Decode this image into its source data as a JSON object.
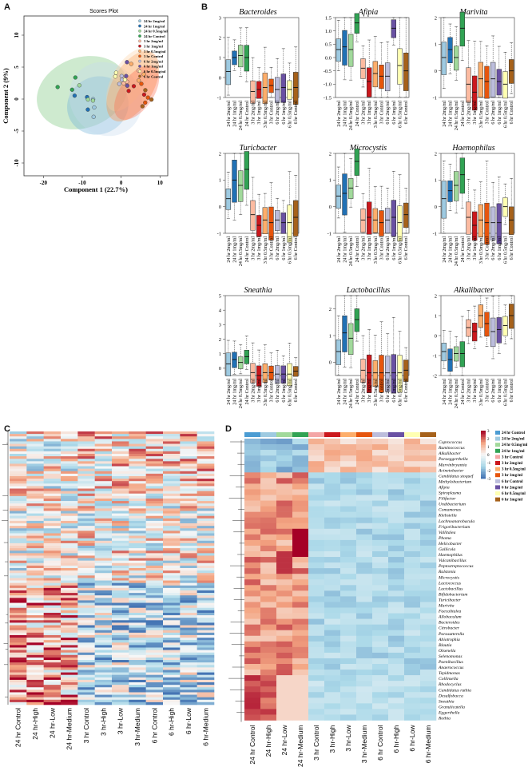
{
  "panels": {
    "a": "A",
    "b": "B",
    "c": "C",
    "d": "D"
  },
  "scores": {
    "title": "Scores Plot",
    "xlabel": "Component 1 (22.7%)",
    "ylabel": "Component 2 (9%)",
    "xticks": [
      "-20",
      "-10",
      "0",
      "10"
    ],
    "yticks": [
      "10",
      "5",
      "0",
      "-5",
      "-10"
    ],
    "legend": [
      {
        "label": "24 hr 2mg/ml",
        "color": "#9ecae1"
      },
      {
        "label": "24 hr 1mg/ml",
        "color": "#2171b5"
      },
      {
        "label": "24 hr 0.5mg/ml",
        "color": "#a1d99b"
      },
      {
        "label": "24 hr Control",
        "color": "#31a354"
      },
      {
        "label": "3 hr 2mg/ml",
        "color": "#fcbba1"
      },
      {
        "label": "3 hr 1mg/ml",
        "color": "#cb181d"
      },
      {
        "label": "3 hr 0.5mg/ml",
        "color": "#fdae6b"
      },
      {
        "label": "3 hr Control",
        "color": "#e6550d"
      },
      {
        "label": "6 hr 2mg/ml",
        "color": "#bcbddc"
      },
      {
        "label": "6 hr 1mg/ml",
        "color": "#6a51a3"
      },
      {
        "label": "6 hr 0.5mg/ml",
        "color": "#ffffb2"
      },
      {
        "label": "6 hr Control",
        "color": "#a6611a"
      }
    ]
  },
  "box_groups": [
    "24 hr 2mg/ml",
    "24 hr 1mg/ml",
    "24 hr 0.5mg/ml",
    "24 hr Control",
    "3 hr 2mg/ml",
    "3 hr 1mg/ml",
    "3 hr 0.5mg/ml",
    "3 hr Control",
    "6 hr 2mg/ml",
    "6 hr 1mg/ml",
    "6 hr 0.5mg/ml",
    "6 hr Control"
  ],
  "box_colors": [
    "#9ecae1",
    "#2171b5",
    "#a1d99b",
    "#31a354",
    "#fcbba1",
    "#cb181d",
    "#fdae6b",
    "#e6550d",
    "#bcbddc",
    "#6a51a3",
    "#ffffb2",
    "#a6611a"
  ],
  "boxplots": [
    {
      "title": "Bacteroides",
      "yticks": [
        "3",
        "2",
        "1",
        "0",
        "-1"
      ],
      "ymin": -1,
      "ymax": 3,
      "medians": [
        0.3,
        1.0,
        1.1,
        1.0,
        -0.7,
        -0.6,
        -0.5,
        -0.4,
        -0.6,
        -0.5,
        -0.6,
        -0.5
      ]
    },
    {
      "title": "Afipia",
      "yticks": [
        "1.5",
        "1.0",
        "0.5",
        "0.0",
        "-0.5",
        "-1.0",
        "-1.5"
      ],
      "ymin": -1.5,
      "ymax": 1.5,
      "medians": [
        0.3,
        0.4,
        0.3,
        1.3,
        -0.4,
        -0.9,
        -0.6,
        -0.7,
        -0.7,
        1.1,
        -0.3,
        -0.5
      ]
    },
    {
      "title": "Marivita",
      "yticks": [
        "2",
        "1",
        "0",
        "-1"
      ],
      "ymin": -1,
      "ymax": 2,
      "medians": [
        0.5,
        0.8,
        0.5,
        1.6,
        -0.5,
        -0.8,
        -0.3,
        -0.4,
        -0.3,
        -0.4,
        -0.5,
        0.0
      ]
    },
    {
      "title": "Turicbacter",
      "yticks": [
        "2",
        "1",
        "0",
        "-1"
      ],
      "ymin": -1,
      "ymax": 2,
      "medians": [
        0.3,
        1.0,
        0.8,
        1.4,
        -0.3,
        -0.7,
        -0.5,
        -0.6,
        -0.5,
        -0.6,
        -0.6,
        -0.4
      ]
    },
    {
      "title": "Microcystis",
      "yticks": [
        "2",
        "1",
        "0",
        "-1"
      ],
      "ymin": -1,
      "ymax": 2,
      "medians": [
        0.4,
        0.5,
        0.7,
        1.7,
        -0.5,
        -0.4,
        -0.5,
        -0.6,
        -0.5,
        -0.4,
        -0.6,
        -0.3
      ]
    },
    {
      "title": "Haemophilus",
      "yticks": [
        "2",
        "1",
        "0",
        "-1"
      ],
      "ymin": -1,
      "ymax": 2,
      "medians": [
        0.3,
        0.6,
        0.8,
        1.2,
        -0.4,
        -0.7,
        -0.5,
        -0.6,
        -0.6,
        -0.6,
        0.0,
        -0.5
      ]
    },
    {
      "title": "Sneathia",
      "yticks": [
        "5",
        "4",
        "3",
        "2",
        "1",
        "0"
      ],
      "ymin": -0.5,
      "ymax": 5,
      "medians": [
        0.3,
        0.6,
        0.4,
        0.8,
        -0.3,
        -0.5,
        -0.3,
        -0.3,
        -0.4,
        -0.4,
        -0.4,
        -0.2
      ]
    },
    {
      "title": "Lactobacillus",
      "yticks": [
        "2",
        "1",
        "0"
      ],
      "ymin": -0.5,
      "ymax": 2.5,
      "medians": [
        0.4,
        1.1,
        0.9,
        1.6,
        -0.3,
        -0.4,
        -0.4,
        -0.4,
        -0.4,
        -0.4,
        -0.4,
        -0.3
      ]
    },
    {
      "title": "Alkalibacter",
      "yticks": [
        "2",
        "1",
        "0",
        "-1",
        "-2"
      ],
      "ymin": -2,
      "ymax": 2,
      "medians": [
        -0.8,
        -1.2,
        -0.9,
        -0.9,
        0.4,
        0.2,
        1.0,
        0.6,
        0.2,
        0.3,
        0.5,
        1.0
      ]
    }
  ],
  "heatmap_c": {
    "columns": [
      "24 hr Control",
      "24 hr-High",
      "24 hr-Low",
      "24 hr-Medium",
      "3 hr Control",
      "3 hr-High",
      "3 hr-Low",
      "3 hr-Medium",
      "6 hr Control",
      "6 hr-High",
      "6 hr-Low",
      "6 hr-Medium"
    ]
  },
  "heatmap_d": {
    "columns": [
      "24 hr Control",
      "24 hr-High",
      "24 hr-Low",
      "24 hr-Medium",
      "3 hr Control",
      "3 hr-High",
      "3 hr-Low",
      "3 hr-Medium",
      "6 hr Control",
      "6 hr-High",
      "6 hr-Low",
      "6 hr-Medium"
    ],
    "rows": [
      "Coprococcus",
      "Ruminococcus",
      "Alkalibacter",
      "Paraeggerthella",
      "Marvinbryantia",
      "Acinetobacter",
      "Candidatus stoquef",
      "Methylobacterium",
      "Afipia",
      "Spiroplasma",
      "Filifactor",
      "Undibacterium",
      "Comamonas",
      "Klebsiella",
      "Lachnoanarobacula",
      "Frigoribacterium",
      "Vallitalea",
      "Phoma",
      "Helicobacter",
      "Gallicola",
      "Haemophilus",
      "Vulcanibacillus",
      "Peptostreptococcus",
      "Ralstonia",
      "Microcystis",
      "Lactococcus",
      "Lactobacillus",
      "Bifidobacterium",
      "Turicibacter",
      "Marivita",
      "Faecalitalea",
      "Allobaculum",
      "Bacteroides",
      "Citrobacter",
      "Parasutterella",
      "Abiotrophia",
      "Blautia",
      "Olsenella",
      "Selenomonas",
      "Paenibacillus",
      "Anaerococcus",
      "Tepidmonas",
      "Collinsella",
      "Rhodocyclus",
      "Candidatus ruthia",
      "Desulfobacca",
      "Sneathia",
      "Granulicatella",
      "Eggerthella",
      "Rothia"
    ],
    "legend": [
      {
        "label": "24 hr Control",
        "color": "#4b9cd3"
      },
      {
        "label": "24 hr 2mg/ml",
        "color": "#9ecae1"
      },
      {
        "label": "24 hr 0.5mg/ml",
        "color": "#a1d99b"
      },
      {
        "label": "24 hr 1mg/ml",
        "color": "#31a354"
      },
      {
        "label": "3 hr Control",
        "color": "#f4a6a6"
      },
      {
        "label": "3 hr 2mg/ml",
        "color": "#cb181d"
      },
      {
        "label": "3 hr 0.5mg/ml",
        "color": "#fdae6b"
      },
      {
        "label": "3 hr 1mg/ml",
        "color": "#e6550d"
      },
      {
        "label": "6 hr Control",
        "color": "#bcbddc"
      },
      {
        "label": "6 hr 2mg/ml",
        "color": "#6a51a3"
      },
      {
        "label": "6 hr 0.5mg/ml",
        "color": "#ffffb2"
      },
      {
        "label": "6 hr 1mg/ml",
        "color": "#a6611a"
      }
    ],
    "scale_ticks": [
      "3",
      "2",
      "1",
      "0",
      "-1",
      "-2",
      "-3"
    ]
  }
}
